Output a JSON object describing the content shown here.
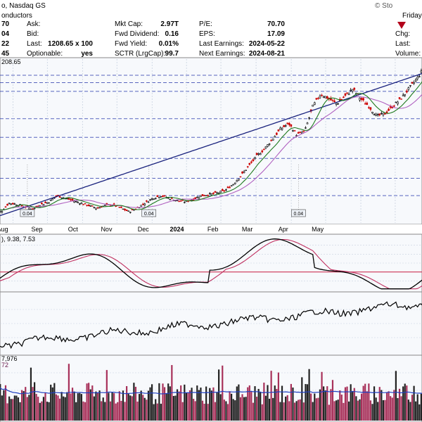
{
  "header": {
    "exchange": "o, Nasdaq GS",
    "sub": "onductors",
    "source": "© Sto",
    "day": "Friday",
    "left_values": [
      "70",
      "04",
      "22",
      "45"
    ],
    "quote": [
      {
        "label": "Ask:",
        "value": ""
      },
      {
        "label": "Bid:",
        "value": ""
      },
      {
        "label": "Last:",
        "value": "1208.65 x 100"
      },
      {
        "label": "Optionable:",
        "value": "yes"
      }
    ],
    "fundamentals": [
      {
        "label": "Mkt Cap:",
        "value": "2.97T"
      },
      {
        "label": "Fwd Dividend:",
        "value": "0.16"
      },
      {
        "label": "Fwd Yield:",
        "value": "0.01%"
      },
      {
        "label": "SCTR (LrgCap):",
        "value": "99.7"
      }
    ],
    "earnings": [
      {
        "label": "P/E:",
        "value": "70.70"
      },
      {
        "label": "EPS:",
        "value": "17.09"
      },
      {
        "label": "Last Earnings:",
        "value": "2024-05-22"
      },
      {
        "label": "Next Earnings:",
        "value": "2024-08-21"
      }
    ],
    "right_labels": [
      "Chg:",
      "Last:",
      "Volume:"
    ],
    "change_arrow": "down-triangle-icon"
  },
  "price_panel": {
    "legend": "208.65",
    "dividend_flags": [
      "0.04",
      "0.04",
      "0.04"
    ]
  },
  "indicator_panel": {
    "legend": "), 9.38, 7.53"
  },
  "rs_panel": {
    "legend": ""
  },
  "volume_panel": {
    "legend_top": "7,976",
    "legend_bottom": "72"
  },
  "colors": {
    "background": "#ffffff",
    "panel_bg": "#f7f9fc",
    "grid": "#c8d2e0",
    "up": "#000000",
    "down": "#cc0000",
    "ma_short": "#1f7a1f",
    "ma_mid": "#b060c0",
    "ma_long": "#1a237e",
    "signal": "#c03060",
    "zero_line": "#cc3355",
    "volume_up": "#222222",
    "volume_down": "#a8315a",
    "volume_avg": "#2040c0"
  },
  "chart_data": {
    "type": "line",
    "x_axis": {
      "months": [
        "Aug",
        "Sep",
        "Oct",
        "Nov",
        "Dec",
        "2024",
        "Feb",
        "Mar",
        "Apr",
        "May"
      ],
      "year_marker": "2024"
    },
    "price": {
      "y_min": 580,
      "y_max": 1240,
      "reference_levels": [
        1175,
        1145,
        1110,
        1000,
        925,
        840,
        760,
        690
      ],
      "weekly_close": [
        [
          0,
          640
        ],
        [
          1,
          625
        ],
        [
          2,
          660
        ],
        [
          3,
          655
        ],
        [
          4,
          645
        ],
        [
          5,
          635
        ],
        [
          6,
          655
        ],
        [
          7,
          665
        ],
        [
          8,
          690
        ],
        [
          9,
          680
        ],
        [
          10,
          670
        ],
        [
          11,
          660
        ],
        [
          12,
          650
        ],
        [
          13,
          640
        ],
        [
          14,
          650
        ],
        [
          15,
          655
        ],
        [
          16,
          640
        ],
        [
          17,
          625
        ],
        [
          18,
          640
        ],
        [
          19,
          660
        ],
        [
          20,
          680
        ],
        [
          21,
          690
        ],
        [
          22,
          680
        ],
        [
          23,
          670
        ],
        [
          24,
          665
        ],
        [
          25,
          675
        ],
        [
          26,
          690
        ],
        [
          27,
          695
        ],
        [
          28,
          700
        ],
        [
          29,
          710
        ],
        [
          30,
          735
        ],
        [
          31,
          770
        ],
        [
          32,
          810
        ],
        [
          33,
          850
        ],
        [
          34,
          880
        ],
        [
          35,
          920
        ],
        [
          36,
          960
        ],
        [
          37,
          980
        ],
        [
          38,
          935
        ],
        [
          39,
          950
        ],
        [
          40,
          1050
        ],
        [
          41,
          1100
        ],
        [
          42,
          1080
        ],
        [
          43,
          1060
        ],
        [
          44,
          1090
        ],
        [
          45,
          1120
        ],
        [
          46,
          1080
        ],
        [
          47,
          1050
        ],
        [
          48,
          1010
        ],
        [
          49,
          1020
        ],
        [
          50,
          1050
        ],
        [
          51,
          1080
        ],
        [
          52,
          1120
        ],
        [
          53,
          1160
        ],
        [
          54,
          1208.65
        ]
      ]
    },
    "indicator": {
      "y_min": -20,
      "y_max": 40,
      "signal_line": 0
    },
    "volume": {
      "y_max": 100
    }
  }
}
